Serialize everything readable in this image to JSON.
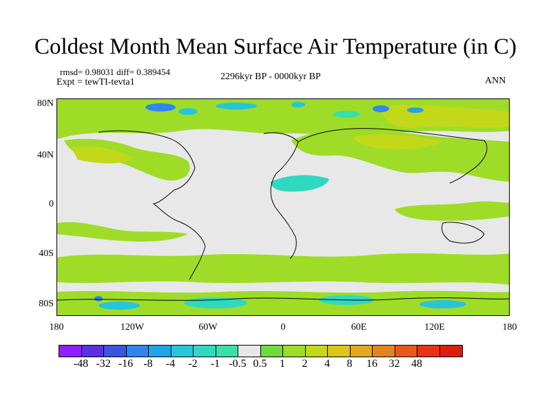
{
  "title": "Coldest Month Mean Surface Air Temperature (in C)",
  "stats": {
    "rmsd_line": "rmsd= 0.98031 diff= 0.389454",
    "expt_line": "Expt = tewTI-tevta1",
    "period": "2296kyr BP - 0000kyr BP",
    "season": "ANN"
  },
  "axes": {
    "y_ticks": [
      "80N",
      "40N",
      "0",
      "40S",
      "80S"
    ],
    "x_ticks": [
      "180",
      "120W",
      "60W",
      "0",
      "60E",
      "120E",
      "180"
    ]
  },
  "colorbar": {
    "colors": [
      "#8f1fff",
      "#5a30e0",
      "#3a56e0",
      "#2f86ee",
      "#1fa4e6",
      "#26c6d8",
      "#30d8c0",
      "#38e0a8",
      "#e8e8e8",
      "#6edb3a",
      "#9edc28",
      "#c4d81a",
      "#dcc618",
      "#e0a81a",
      "#e48420",
      "#e85a1c",
      "#e83212",
      "#d8200a"
    ],
    "labels": [
      "-48",
      "-32",
      "-16",
      "-8",
      "-4",
      "-2",
      "-1",
      "-0.5",
      "0.5",
      "1",
      "2",
      "4",
      "8",
      "16",
      "32",
      "48"
    ]
  }
}
